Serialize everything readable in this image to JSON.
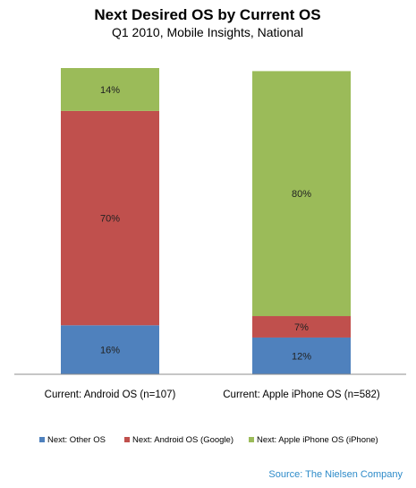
{
  "chart_data": {
    "type": "bar",
    "stacked": true,
    "title": "Next Desired OS by Current OS",
    "subtitle": "Q1 2010, Mobile Insights, National",
    "categories": [
      "Current: Android OS (n=107)",
      "Current: Apple iPhone OS (n=582)"
    ],
    "series": [
      {
        "name": "Next: Other OS",
        "values": [
          16,
          12
        ],
        "labels": [
          "16%",
          "12%"
        ],
        "color": "#4f81bd"
      },
      {
        "name": "Next: Android OS (Google)",
        "values": [
          70,
          7
        ],
        "labels": [
          "70%",
          "7%"
        ],
        "color": "#c0504d"
      },
      {
        "name": "Next: Apple iPhone OS (iPhone)",
        "values": [
          14,
          80
        ],
        "labels": [
          "14%",
          "80%"
        ],
        "color": "#9bbb59"
      }
    ],
    "ylim": [
      0,
      100
    ],
    "grid": false,
    "legend_position": "bottom"
  },
  "source": "Source: The Nielsen Company"
}
